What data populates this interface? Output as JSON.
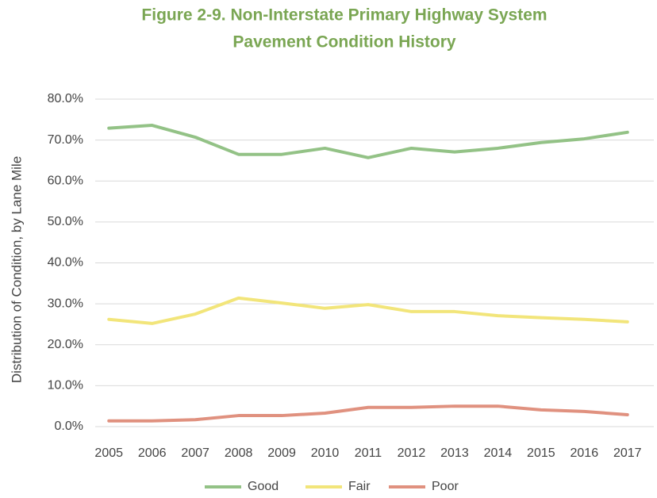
{
  "chart_data": {
    "type": "line",
    "title": [
      "Figure 2-9. Non-Interstate Primary Highway System",
      "Pavement Condition History"
    ],
    "y_label": "Distribution of Condition, by Lane Mile",
    "categories": [
      "2005",
      "2006",
      "2007",
      "2008",
      "2009",
      "2010",
      "2011",
      "2012",
      "2013",
      "2014",
      "2015",
      "2016",
      "2017"
    ],
    "series": [
      {
        "name": "Good",
        "color": "#93c286",
        "values": [
          72.9,
          73.6,
          70.7,
          66.5,
          66.5,
          68.0,
          65.7,
          68.0,
          67.1,
          68.0,
          69.4,
          70.3,
          71.9
        ]
      },
      {
        "name": "Fair",
        "color": "#f2e57a",
        "values": [
          26.2,
          25.2,
          27.5,
          31.4,
          30.2,
          28.9,
          29.8,
          28.1,
          28.1,
          27.1,
          26.6,
          26.2,
          25.6
        ]
      },
      {
        "name": "Poor",
        "color": "#e0917f",
        "values": [
          1.4,
          1.4,
          1.7,
          2.7,
          2.7,
          3.3,
          4.7,
          4.7,
          5.0,
          5.0,
          4.1,
          3.7,
          2.9
        ]
      }
    ],
    "ylim": [
      0,
      80
    ],
    "yticks": [
      {
        "value": 0,
        "label": "0.0%"
      },
      {
        "value": 10,
        "label": "10.0%"
      },
      {
        "value": 20,
        "label": "20.0%"
      },
      {
        "value": 30,
        "label": "30.0%"
      },
      {
        "value": 40,
        "label": "40.0%"
      },
      {
        "value": 50,
        "label": "50.0%"
      },
      {
        "value": 60,
        "label": "60.0%"
      },
      {
        "value": 70,
        "label": "70.0%"
      },
      {
        "value": 80,
        "label": "80.0%"
      }
    ],
    "grid": true,
    "legend": "bottom"
  }
}
